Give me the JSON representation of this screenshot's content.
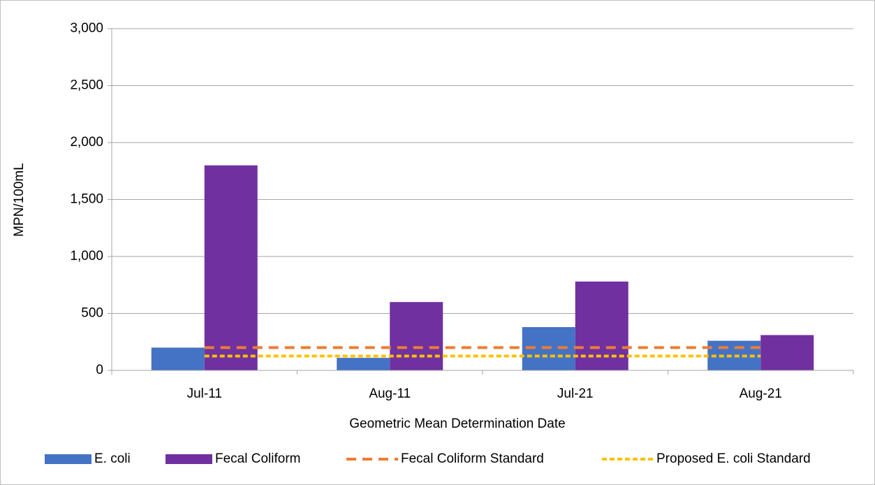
{
  "chart_data": {
    "type": "bar",
    "x_label": "Geometric Mean Determination Date",
    "y_label": "MPN/100mL",
    "categories": [
      "Jul-11",
      "Aug-11",
      "Jul-21",
      "Aug-21"
    ],
    "series": [
      {
        "name": "E. coli",
        "type": "bar",
        "color": "#4472c4",
        "values": [
          200,
          110,
          380,
          260
        ]
      },
      {
        "name": "Fecal Coliform",
        "type": "bar",
        "color": "#7030a0",
        "values": [
          1800,
          600,
          780,
          310
        ]
      },
      {
        "name": "Fecal Coliform Standard",
        "type": "line",
        "dash": "dash",
        "color": "#ed7d31",
        "values": [
          200,
          200,
          200,
          200
        ]
      },
      {
        "name": "Proposed E. coli Standard",
        "type": "line",
        "dash": "dot",
        "color": "#ffc000",
        "values": [
          126,
          126,
          126,
          126
        ]
      }
    ],
    "ylim": [
      0,
      3000
    ],
    "yticks": [
      0,
      500,
      {
        "value": 1000,
        "label": "1,000"
      },
      {
        "value": 1500,
        "label": "1,500"
      },
      {
        "value": 2000,
        "label": "2,000"
      },
      {
        "value": 2500,
        "label": "2,500"
      },
      {
        "value": 3000,
        "label": "3,000"
      }
    ],
    "grid": true,
    "legend": "bottom"
  }
}
